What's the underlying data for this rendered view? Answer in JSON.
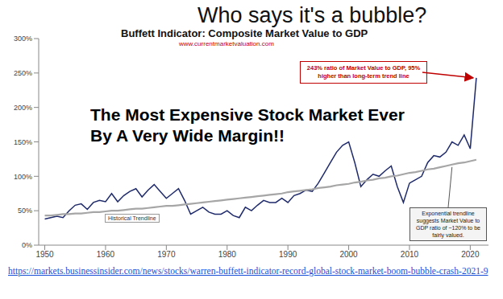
{
  "heading": "Who says it's a bubble?",
  "source": "https://markets.businessinsider.com/news/stocks/warren-buffett-indicator-record-global-stock-market-boom-bubble-crash-2021-9",
  "chart_data": {
    "type": "line",
    "title": "Buffett Indicator: Composite Market Value to GDP",
    "subtitle": "www.currentmarketvaluation.com",
    "annotations": [
      "The Most Expensive Stock Market Ever",
      "By A Very Wide Margin!!",
      "243% ratio of Market Value to GDP, 95% higher than long-term trend line",
      "Exponential trendline suggests Market Value to GDP ratio of ~120% to be fairly valued."
    ],
    "x": [
      1950,
      1951,
      1952,
      1953,
      1954,
      1955,
      1956,
      1957,
      1958,
      1959,
      1960,
      1961,
      1962,
      1963,
      1964,
      1965,
      1966,
      1967,
      1968,
      1969,
      1970,
      1971,
      1972,
      1973,
      1974,
      1975,
      1976,
      1977,
      1978,
      1979,
      1980,
      1981,
      1982,
      1983,
      1984,
      1985,
      1986,
      1987,
      1988,
      1989,
      1990,
      1991,
      1992,
      1993,
      1994,
      1995,
      1996,
      1997,
      1998,
      1999,
      2000,
      2001,
      2002,
      2003,
      2004,
      2005,
      2006,
      2007,
      2008,
      2009,
      2010,
      2011,
      2012,
      2013,
      2014,
      2015,
      2016,
      2017,
      2018,
      2019,
      2020,
      2021
    ],
    "series": [
      {
        "color": "#1f2a6b",
        "values": [
          38,
          40,
          42,
          40,
          50,
          58,
          60,
          52,
          62,
          65,
          63,
          75,
          63,
          72,
          78,
          82,
          70,
          80,
          88,
          78,
          68,
          75,
          82,
          65,
          45,
          50,
          55,
          48,
          45,
          45,
          50,
          43,
          40,
          55,
          50,
          58,
          65,
          62,
          62,
          68,
          62,
          72,
          75,
          80,
          78,
          90,
          105,
          120,
          135,
          145,
          150,
          120,
          85,
          95,
          103,
          100,
          108,
          115,
          85,
          62,
          90,
          95,
          100,
          120,
          130,
          128,
          135,
          150,
          145,
          160,
          140,
          243
        ]
      },
      {
        "name": "Historical Trendline",
        "color": "#a6a6a6",
        "values": [
          43,
          43,
          44,
          45,
          45,
          46,
          46,
          47,
          48,
          48,
          49,
          50,
          50,
          51,
          52,
          53,
          53,
          54,
          55,
          56,
          57,
          57,
          58,
          59,
          60,
          61,
          62,
          63,
          64,
          65,
          66,
          67,
          68,
          69,
          70,
          71,
          72,
          73,
          74,
          75,
          77,
          78,
          79,
          80,
          81,
          83,
          84,
          85,
          87,
          88,
          89,
          91,
          92,
          94,
          95,
          97,
          98,
          100,
          101,
          103,
          105,
          106,
          108,
          110,
          111,
          113,
          115,
          117,
          119,
          120,
          122,
          124
        ]
      }
    ],
    "xlim": [
      1949,
      2023
    ],
    "xticks": [
      1950,
      1960,
      1970,
      1980,
      1990,
      2000,
      2010,
      2020
    ],
    "ylim": [
      0,
      300
    ],
    "yticks": [
      {
        "value": 0,
        "label": "0%"
      },
      {
        "value": 50,
        "label": "50%"
      },
      {
        "value": 100,
        "label": "100%"
      },
      {
        "value": 150,
        "label": "150%"
      },
      {
        "value": 200,
        "label": "200%"
      },
      {
        "value": 250,
        "label": "250%"
      },
      {
        "value": 300,
        "label": "300%"
      }
    ],
    "grid": false
  }
}
